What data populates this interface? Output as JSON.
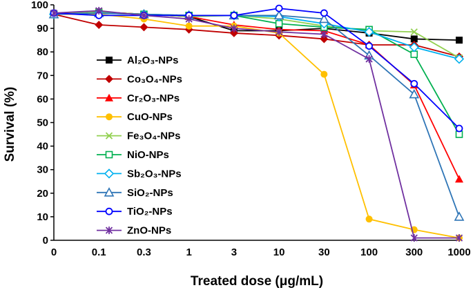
{
  "chart_data": {
    "type": "line",
    "title": "",
    "xlabel": "Treated dose (μg/mL)",
    "ylabel": "Survival (%)",
    "ylim": [
      0,
      100
    ],
    "yticks": [
      0,
      10,
      20,
      30,
      40,
      50,
      60,
      70,
      80,
      90,
      100
    ],
    "categories": [
      "0",
      "0.1",
      "0.3",
      "1",
      "3",
      "10",
      "30",
      "100",
      "300",
      "1000"
    ],
    "legend_position": "left-center",
    "series": [
      {
        "name": "Al₂O₃-NPs",
        "color": "#000000",
        "marker": "square-filled",
        "values": [
          96,
          97,
          96,
          95,
          89,
          89,
          90,
          88,
          85.5,
          85
        ]
      },
      {
        "name": "Co₃O₄-NPs",
        "color": "#c00000",
        "marker": "diamond-filled",
        "values": [
          96,
          91.5,
          90.5,
          89.5,
          88,
          87,
          85.5,
          83,
          83,
          78
        ]
      },
      {
        "name": "Cr₂O₃-NPs",
        "color": "#ff0000",
        "marker": "triangle-filled",
        "values": [
          96,
          97,
          96,
          95,
          91.5,
          89.5,
          89,
          83,
          66,
          26
        ]
      },
      {
        "name": "CuO-NPs",
        "color": "#ffc000",
        "marker": "circle-filled",
        "values": [
          96,
          96,
          94,
          91,
          91,
          88,
          70.5,
          9,
          4.5,
          1
        ]
      },
      {
        "name": "Fe₃O₄-NPs",
        "color": "#92d050",
        "marker": "x",
        "values": [
          96,
          97,
          96,
          95,
          95.5,
          94,
          91,
          89,
          88.5,
          77.5
        ]
      },
      {
        "name": "NiO-NPs",
        "color": "#00b050",
        "marker": "square-open",
        "values": [
          96,
          96.5,
          96,
          95.5,
          95.5,
          92,
          90.5,
          89.5,
          79,
          45
        ]
      },
      {
        "name": "Sb₂O₃-NPs",
        "color": "#00b0f0",
        "marker": "diamond-open",
        "values": [
          96,
          96.5,
          96,
          95.5,
          95.5,
          95,
          92,
          88.5,
          82,
          77
        ]
      },
      {
        "name": "SiO₂-NPs",
        "color": "#2e75b6",
        "marker": "triangle-open",
        "values": [
          96,
          96.5,
          96,
          95.5,
          95.5,
          95.5,
          94,
          78.5,
          62,
          10
        ]
      },
      {
        "name": "TiO₂-NPs",
        "color": "#0000ff",
        "marker": "circle-open",
        "values": [
          96.5,
          95.5,
          95.5,
          95.5,
          95.5,
          98.5,
          96.5,
          82.5,
          66.5,
          47.5
        ]
      },
      {
        "name": "ZnO-NPs",
        "color": "#7030a0",
        "marker": "star",
        "values": [
          96.5,
          97.5,
          95.5,
          94,
          90,
          88.5,
          87.5,
          77,
          1,
          1
        ]
      }
    ]
  }
}
